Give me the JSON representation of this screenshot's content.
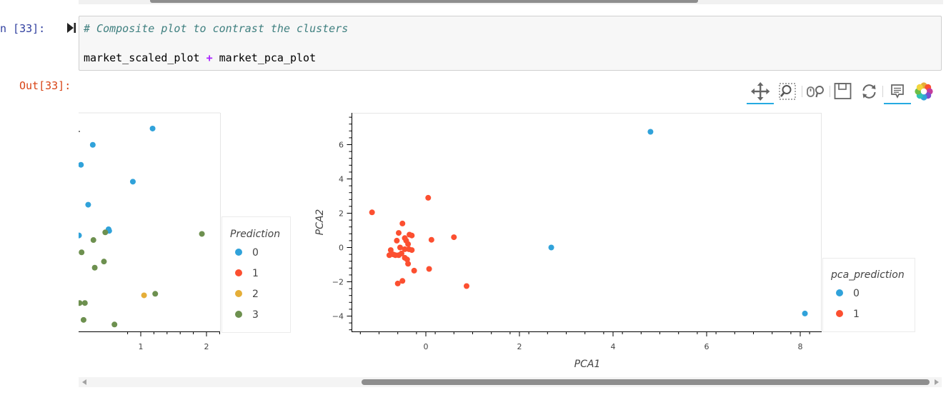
{
  "cell": {
    "in_prompt": "n [33]:",
    "out_prompt": "Out[33]:",
    "code_comment": "# Composite plot to contrast the clusters",
    "code_left": "market_scaled_plot",
    "code_op": "+",
    "code_right": "market_pca_plot"
  },
  "toolbar": {
    "tools": [
      "pan-icon",
      "box-zoom-icon",
      "wheel-zoom-icon",
      "save-icon",
      "reset-icon",
      "hover-icon",
      "bokeh-logo-icon"
    ],
    "active": [
      "pan-icon",
      "hover-icon"
    ]
  },
  "colors": {
    "cluster0": "#30a2da",
    "cluster1": "#fc4f30",
    "cluster2": "#e5ae38",
    "cluster3": "#6d904f"
  },
  "chart_data": [
    {
      "type": "scatter",
      "x_ticks": [
        "1",
        "2"
      ],
      "legend": {
        "title": "Prediction",
        "entries": [
          {
            "label": "0",
            "color": "#30a2da"
          },
          {
            "label": "1",
            "color": "#fc4f30"
          },
          {
            "label": "2",
            "color": "#e5ae38"
          },
          {
            "label": "3",
            "color": "#6d904f"
          }
        ],
        "placement": "right"
      },
      "series": [
        {
          "name": "0",
          "points": [
            [
              0.27,
              5.75
            ],
            [
              0.09,
              5.1
            ],
            [
              0.2,
              3.8
            ],
            [
              1.18,
              6.28
            ],
            [
              0.88,
              4.55
            ],
            [
              0.51,
              3.0
            ],
            [
              0.52,
              2.95
            ],
            [
              0.06,
              2.8
            ]
          ]
        },
        {
          "name": "2",
          "points": [
            [
              1.05,
              0.85
            ]
          ]
        },
        {
          "name": "3",
          "points": [
            [
              0.46,
              2.9
            ],
            [
              0.28,
              2.65
            ],
            [
              1.93,
              2.85
            ],
            [
              0.1,
              2.25
            ],
            [
              0.44,
              1.95
            ],
            [
              0.3,
              1.75
            ],
            [
              0.07,
              0.6
            ],
            [
              0.15,
              0.6
            ],
            [
              0.05,
              0.05
            ],
            [
              0.13,
              0.05
            ],
            [
              1.22,
              0.9
            ],
            [
              0.6,
              -0.1
            ],
            [
              0.34,
              -1.7
            ]
          ]
        }
      ]
    },
    {
      "type": "scatter",
      "xlabel": "PCA1",
      "ylabel": "PCA2",
      "xlim": [
        -1.55,
        8.4
      ],
      "ylim": [
        -4.95,
        7.95
      ],
      "x_ticks": [
        "0",
        "2",
        "4",
        "6",
        "8"
      ],
      "y_ticks": [
        "6",
        "4",
        "2",
        "0",
        "−2",
        "−4"
      ],
      "legend": {
        "title": "pca_prediction",
        "entries": [
          {
            "label": "0",
            "color": "#30a2da"
          },
          {
            "label": "1",
            "color": "#fc4f30"
          }
        ],
        "placement": "right"
      },
      "series": [
        {
          "name": "0",
          "points": [
            [
              4.8,
              6.75
            ],
            [
              2.68,
              0.0
            ],
            [
              8.1,
              -3.85
            ]
          ]
        },
        {
          "name": "1",
          "points": [
            [
              -1.15,
              2.05
            ],
            [
              0.05,
              2.9
            ],
            [
              -0.5,
              1.4
            ],
            [
              -0.58,
              0.85
            ],
            [
              -0.35,
              0.75
            ],
            [
              -0.3,
              0.7
            ],
            [
              -0.45,
              0.55
            ],
            [
              -0.42,
              0.4
            ],
            [
              -0.62,
              0.4
            ],
            [
              0.6,
              0.6
            ],
            [
              0.12,
              0.45
            ],
            [
              -0.38,
              0.2
            ],
            [
              -0.55,
              0.0
            ],
            [
              -0.45,
              -0.1
            ],
            [
              -0.36,
              -0.1
            ],
            [
              -0.3,
              -0.15
            ],
            [
              -0.75,
              -0.15
            ],
            [
              -0.7,
              -0.4
            ],
            [
              -0.78,
              -0.45
            ],
            [
              -0.65,
              -0.45
            ],
            [
              -0.58,
              -0.45
            ],
            [
              -0.52,
              -0.35
            ],
            [
              -0.45,
              -0.6
            ],
            [
              -0.4,
              -0.7
            ],
            [
              -0.38,
              -0.95
            ],
            [
              -0.25,
              -1.35
            ],
            [
              0.07,
              -1.25
            ],
            [
              -0.5,
              -1.95
            ],
            [
              -0.6,
              -2.1
            ],
            [
              0.87,
              -2.25
            ]
          ]
        }
      ]
    }
  ]
}
